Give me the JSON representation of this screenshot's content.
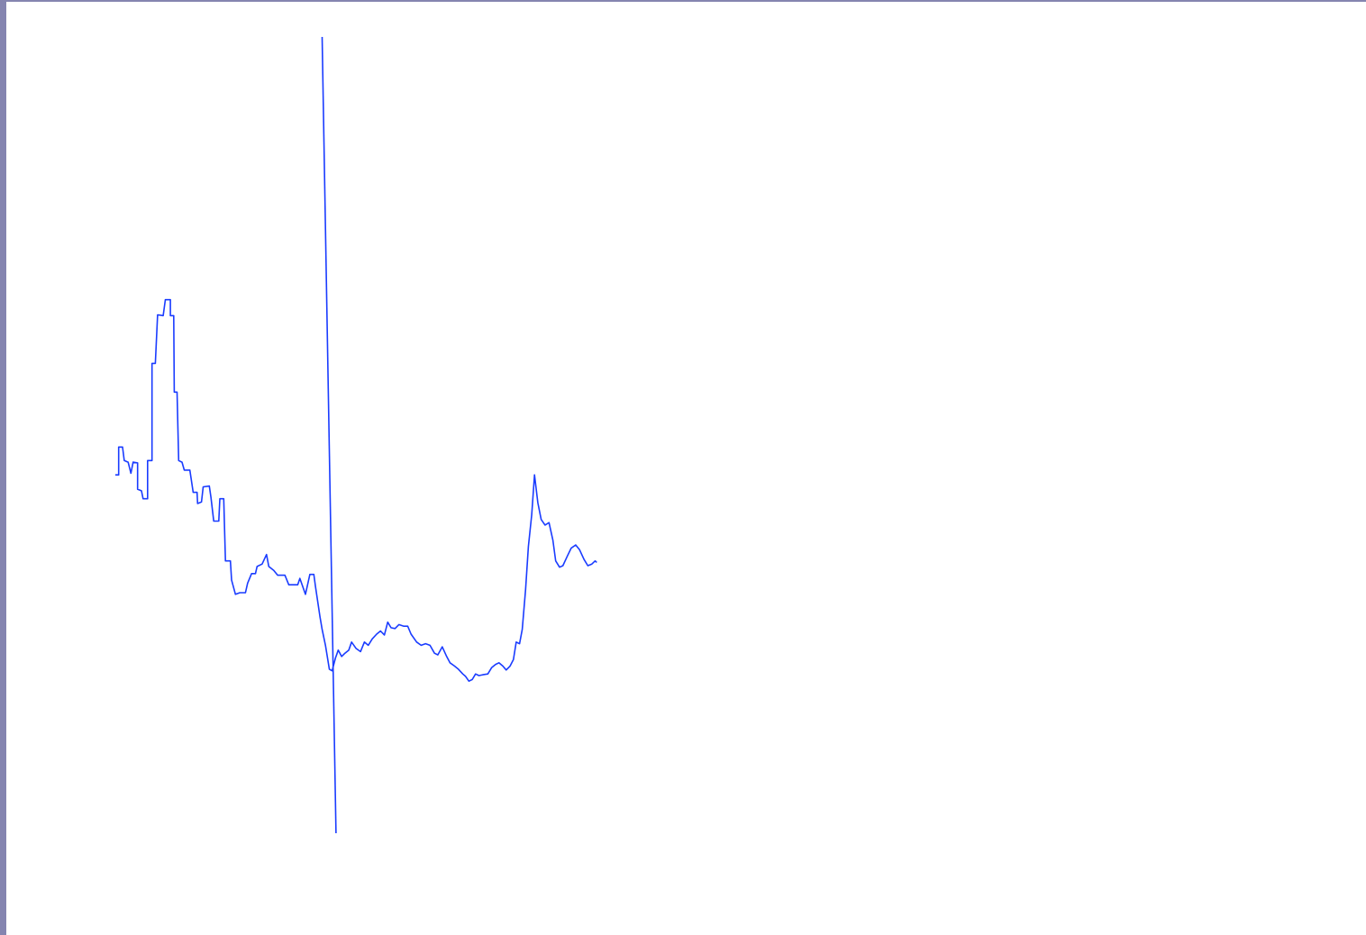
{
  "colors": {
    "frame": "#8585b0",
    "background": "#ffffff",
    "series": "#1a3cff"
  },
  "chart_data": [
    {
      "type": "line",
      "title": "",
      "xlabel": "",
      "ylabel": "",
      "grid": false,
      "legend": "none",
      "xlim": [
        0,
        100
      ],
      "ylim": [
        0,
        100
      ],
      "series": [
        {
          "values": [
            [
              0.0,
              45.0
            ],
            [
              0.6,
              45.0
            ],
            [
              0.6,
              48.5
            ],
            [
              1.3,
              48.5
            ],
            [
              1.6,
              46.8
            ],
            [
              2.3,
              46.6
            ],
            [
              2.8,
              45.2
            ],
            [
              3.2,
              46.6
            ],
            [
              4.0,
              46.5
            ],
            [
              4.0,
              43.2
            ],
            [
              4.7,
              43.0
            ],
            [
              5.0,
              42.0
            ],
            [
              5.8,
              42.0
            ],
            [
              5.8,
              46.8
            ],
            [
              6.6,
              46.8
            ],
            [
              6.6,
              59.0
            ],
            [
              7.2,
              59.0
            ],
            [
              7.6,
              65.1
            ],
            [
              8.6,
              65.0
            ],
            [
              9.0,
              67.0
            ],
            [
              9.9,
              67.0
            ],
            [
              9.9,
              65.0
            ],
            [
              10.5,
              65.0
            ],
            [
              10.6,
              55.4
            ],
            [
              11.1,
              55.4
            ],
            [
              11.4,
              46.8
            ],
            [
              12.0,
              46.6
            ],
            [
              12.4,
              45.6
            ],
            [
              13.4,
              45.6
            ],
            [
              14.0,
              42.8
            ],
            [
              14.7,
              42.8
            ],
            [
              14.8,
              41.4
            ],
            [
              15.5,
              41.6
            ],
            [
              15.8,
              43.5
            ],
            [
              16.9,
              43.6
            ],
            [
              17.2,
              42.2
            ],
            [
              17.7,
              39.2
            ],
            [
              18.6,
              39.2
            ],
            [
              18.8,
              42.0
            ],
            [
              19.5,
              42.0
            ],
            [
              19.8,
              34.2
            ],
            [
              20.7,
              34.2
            ],
            [
              20.9,
              31.8
            ],
            [
              21.6,
              30.0
            ],
            [
              22.4,
              30.2
            ],
            [
              23.4,
              30.2
            ],
            [
              23.8,
              31.4
            ],
            [
              24.5,
              32.6
            ],
            [
              25.2,
              32.6
            ],
            [
              25.5,
              33.5
            ],
            [
              26.4,
              33.8
            ],
            [
              27.2,
              35.0
            ],
            [
              27.6,
              33.5
            ],
            [
              28.5,
              33.0
            ],
            [
              29.2,
              32.4
            ],
            [
              30.5,
              32.4
            ],
            [
              31.2,
              31.2
            ],
            [
              32.8,
              31.2
            ],
            [
              33.2,
              32.0
            ],
            [
              34.2,
              30.0
            ],
            [
              35.0,
              32.5
            ],
            [
              35.7,
              32.5
            ],
            [
              36.0,
              31.0
            ],
            [
              36.8,
              27.2
            ],
            [
              37.2,
              25.6
            ],
            [
              37.8,
              23.6
            ],
            [
              38.5,
              20.6
            ],
            [
              39.0,
              20.4
            ],
            [
              39.6,
              22.0
            ],
            [
              40.1,
              23.0
            ],
            [
              40.7,
              22.2
            ],
            [
              41.3,
              22.6
            ],
            [
              42.0,
              23.0
            ],
            [
              42.5,
              24.0
            ],
            [
              43.3,
              23.2
            ],
            [
              44.1,
              22.8
            ],
            [
              44.8,
              24.0
            ],
            [
              45.5,
              23.6
            ],
            [
              46.2,
              24.4
            ],
            [
              47.0,
              25.0
            ],
            [
              47.7,
              25.4
            ],
            [
              48.4,
              24.9
            ],
            [
              49.0,
              26.5
            ],
            [
              49.6,
              25.8
            ],
            [
              50.3,
              25.7
            ],
            [
              51.0,
              26.2
            ],
            [
              51.9,
              26.0
            ],
            [
              52.6,
              26.0
            ],
            [
              53.2,
              25.0
            ],
            [
              54.2,
              24.0
            ],
            [
              55.0,
              23.6
            ],
            [
              55.8,
              23.8
            ],
            [
              56.6,
              23.6
            ],
            [
              57.4,
              22.6
            ],
            [
              58.0,
              22.4
            ],
            [
              58.8,
              23.4
            ],
            [
              59.6,
              22.2
            ],
            [
              60.2,
              21.4
            ],
            [
              61.0,
              21.0
            ],
            [
              61.7,
              20.6
            ],
            [
              62.5,
              20.0
            ],
            [
              63.0,
              19.7
            ],
            [
              63.6,
              19.1
            ],
            [
              64.2,
              19.3
            ],
            [
              64.8,
              20.0
            ],
            [
              65.4,
              19.8
            ],
            [
              66.1,
              19.9
            ],
            [
              67.0,
              20.0
            ],
            [
              67.7,
              20.8
            ],
            [
              68.4,
              21.2
            ],
            [
              69.0,
              21.4
            ],
            [
              69.7,
              21.0
            ],
            [
              70.3,
              20.5
            ],
            [
              71.0,
              21.0
            ],
            [
              71.6,
              21.8
            ],
            [
              72.1,
              24.0
            ],
            [
              72.7,
              23.8
            ],
            [
              73.2,
              25.6
            ],
            [
              73.8,
              30.6
            ],
            [
              74.3,
              36.0
            ],
            [
              74.9,
              40.0
            ],
            [
              75.4,
              45.0
            ],
            [
              76.0,
              41.5
            ],
            [
              76.6,
              39.4
            ],
            [
              77.3,
              38.7
            ],
            [
              78.0,
              39.0
            ],
            [
              78.7,
              36.8
            ],
            [
              79.2,
              34.2
            ],
            [
              79.9,
              33.4
            ],
            [
              80.5,
              33.6
            ],
            [
              81.3,
              34.8
            ],
            [
              82.0,
              35.8
            ],
            [
              82.8,
              36.2
            ],
            [
              83.5,
              35.6
            ],
            [
              84.3,
              34.4
            ],
            [
              85.0,
              33.6
            ],
            [
              85.7,
              33.8
            ],
            [
              86.3,
              34.2
            ],
            [
              86.6,
              34.0
            ]
          ]
        },
        {
          "values": [
            [
              37.2,
              100.0
            ],
            [
              39.7,
              0.0
            ]
          ]
        }
      ]
    }
  ]
}
